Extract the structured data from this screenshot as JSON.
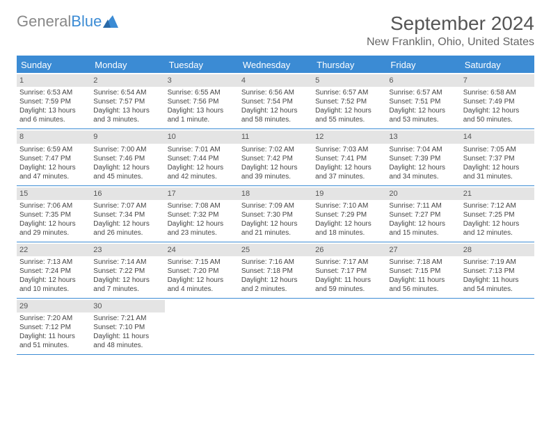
{
  "logo": {
    "text1": "General",
    "text2": "Blue"
  },
  "title": "September 2024",
  "location": "New Franklin, Ohio, United States",
  "weekdays": [
    "Sunday",
    "Monday",
    "Tuesday",
    "Wednesday",
    "Thursday",
    "Friday",
    "Saturday"
  ],
  "colors": {
    "accent": "#3b8bd4",
    "daynum_bg": "#e4e4e4"
  },
  "weeks": [
    [
      {
        "n": "1",
        "sr": "Sunrise: 6:53 AM",
        "ss": "Sunset: 7:59 PM",
        "d1": "Daylight: 13 hours",
        "d2": "and 6 minutes."
      },
      {
        "n": "2",
        "sr": "Sunrise: 6:54 AM",
        "ss": "Sunset: 7:57 PM",
        "d1": "Daylight: 13 hours",
        "d2": "and 3 minutes."
      },
      {
        "n": "3",
        "sr": "Sunrise: 6:55 AM",
        "ss": "Sunset: 7:56 PM",
        "d1": "Daylight: 13 hours",
        "d2": "and 1 minute."
      },
      {
        "n": "4",
        "sr": "Sunrise: 6:56 AM",
        "ss": "Sunset: 7:54 PM",
        "d1": "Daylight: 12 hours",
        "d2": "and 58 minutes."
      },
      {
        "n": "5",
        "sr": "Sunrise: 6:57 AM",
        "ss": "Sunset: 7:52 PM",
        "d1": "Daylight: 12 hours",
        "d2": "and 55 minutes."
      },
      {
        "n": "6",
        "sr": "Sunrise: 6:57 AM",
        "ss": "Sunset: 7:51 PM",
        "d1": "Daylight: 12 hours",
        "d2": "and 53 minutes."
      },
      {
        "n": "7",
        "sr": "Sunrise: 6:58 AM",
        "ss": "Sunset: 7:49 PM",
        "d1": "Daylight: 12 hours",
        "d2": "and 50 minutes."
      }
    ],
    [
      {
        "n": "8",
        "sr": "Sunrise: 6:59 AM",
        "ss": "Sunset: 7:47 PM",
        "d1": "Daylight: 12 hours",
        "d2": "and 47 minutes."
      },
      {
        "n": "9",
        "sr": "Sunrise: 7:00 AM",
        "ss": "Sunset: 7:46 PM",
        "d1": "Daylight: 12 hours",
        "d2": "and 45 minutes."
      },
      {
        "n": "10",
        "sr": "Sunrise: 7:01 AM",
        "ss": "Sunset: 7:44 PM",
        "d1": "Daylight: 12 hours",
        "d2": "and 42 minutes."
      },
      {
        "n": "11",
        "sr": "Sunrise: 7:02 AM",
        "ss": "Sunset: 7:42 PM",
        "d1": "Daylight: 12 hours",
        "d2": "and 39 minutes."
      },
      {
        "n": "12",
        "sr": "Sunrise: 7:03 AM",
        "ss": "Sunset: 7:41 PM",
        "d1": "Daylight: 12 hours",
        "d2": "and 37 minutes."
      },
      {
        "n": "13",
        "sr": "Sunrise: 7:04 AM",
        "ss": "Sunset: 7:39 PM",
        "d1": "Daylight: 12 hours",
        "d2": "and 34 minutes."
      },
      {
        "n": "14",
        "sr": "Sunrise: 7:05 AM",
        "ss": "Sunset: 7:37 PM",
        "d1": "Daylight: 12 hours",
        "d2": "and 31 minutes."
      }
    ],
    [
      {
        "n": "15",
        "sr": "Sunrise: 7:06 AM",
        "ss": "Sunset: 7:35 PM",
        "d1": "Daylight: 12 hours",
        "d2": "and 29 minutes."
      },
      {
        "n": "16",
        "sr": "Sunrise: 7:07 AM",
        "ss": "Sunset: 7:34 PM",
        "d1": "Daylight: 12 hours",
        "d2": "and 26 minutes."
      },
      {
        "n": "17",
        "sr": "Sunrise: 7:08 AM",
        "ss": "Sunset: 7:32 PM",
        "d1": "Daylight: 12 hours",
        "d2": "and 23 minutes."
      },
      {
        "n": "18",
        "sr": "Sunrise: 7:09 AM",
        "ss": "Sunset: 7:30 PM",
        "d1": "Daylight: 12 hours",
        "d2": "and 21 minutes."
      },
      {
        "n": "19",
        "sr": "Sunrise: 7:10 AM",
        "ss": "Sunset: 7:29 PM",
        "d1": "Daylight: 12 hours",
        "d2": "and 18 minutes."
      },
      {
        "n": "20",
        "sr": "Sunrise: 7:11 AM",
        "ss": "Sunset: 7:27 PM",
        "d1": "Daylight: 12 hours",
        "d2": "and 15 minutes."
      },
      {
        "n": "21",
        "sr": "Sunrise: 7:12 AM",
        "ss": "Sunset: 7:25 PM",
        "d1": "Daylight: 12 hours",
        "d2": "and 12 minutes."
      }
    ],
    [
      {
        "n": "22",
        "sr": "Sunrise: 7:13 AM",
        "ss": "Sunset: 7:24 PM",
        "d1": "Daylight: 12 hours",
        "d2": "and 10 minutes."
      },
      {
        "n": "23",
        "sr": "Sunrise: 7:14 AM",
        "ss": "Sunset: 7:22 PM",
        "d1": "Daylight: 12 hours",
        "d2": "and 7 minutes."
      },
      {
        "n": "24",
        "sr": "Sunrise: 7:15 AM",
        "ss": "Sunset: 7:20 PM",
        "d1": "Daylight: 12 hours",
        "d2": "and 4 minutes."
      },
      {
        "n": "25",
        "sr": "Sunrise: 7:16 AM",
        "ss": "Sunset: 7:18 PM",
        "d1": "Daylight: 12 hours",
        "d2": "and 2 minutes."
      },
      {
        "n": "26",
        "sr": "Sunrise: 7:17 AM",
        "ss": "Sunset: 7:17 PM",
        "d1": "Daylight: 11 hours",
        "d2": "and 59 minutes."
      },
      {
        "n": "27",
        "sr": "Sunrise: 7:18 AM",
        "ss": "Sunset: 7:15 PM",
        "d1": "Daylight: 11 hours",
        "d2": "and 56 minutes."
      },
      {
        "n": "28",
        "sr": "Sunrise: 7:19 AM",
        "ss": "Sunset: 7:13 PM",
        "d1": "Daylight: 11 hours",
        "d2": "and 54 minutes."
      }
    ],
    [
      {
        "n": "29",
        "sr": "Sunrise: 7:20 AM",
        "ss": "Sunset: 7:12 PM",
        "d1": "Daylight: 11 hours",
        "d2": "and 51 minutes."
      },
      {
        "n": "30",
        "sr": "Sunrise: 7:21 AM",
        "ss": "Sunset: 7:10 PM",
        "d1": "Daylight: 11 hours",
        "d2": "and 48 minutes."
      },
      null,
      null,
      null,
      null,
      null
    ]
  ]
}
